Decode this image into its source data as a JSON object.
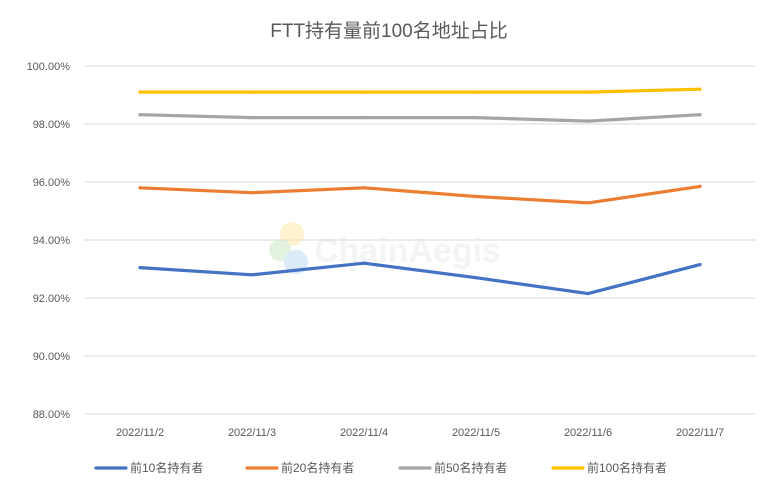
{
  "chart_data": {
    "type": "line",
    "title": "FTT持有量前100名地址占比",
    "xlabel": "",
    "ylabel": "",
    "categories": [
      "2022/11/2",
      "2022/11/3",
      "2022/11/4",
      "2022/11/5",
      "2022/11/6",
      "2022/11/7"
    ],
    "y_ticks": [
      "88.00%",
      "90.00%",
      "92.00%",
      "94.00%",
      "96.00%",
      "98.00%",
      "100.00%"
    ],
    "ylim": [
      88,
      100
    ],
    "y_unit": "%",
    "grid": true,
    "legend_position": "bottom",
    "series": [
      {
        "name": "前10名持有者",
        "color": "#4472c4",
        "values": [
          93.05,
          92.8,
          93.2,
          92.7,
          92.15,
          93.15
        ]
      },
      {
        "name": "前20名持有者",
        "color": "#ed7d31",
        "values": [
          95.8,
          95.63,
          95.8,
          95.5,
          95.28,
          95.85
        ]
      },
      {
        "name": "前50名持有者",
        "color": "#a5a5a5",
        "values": [
          98.32,
          98.22,
          98.22,
          98.22,
          98.1,
          98.32
        ]
      },
      {
        "name": "前100名持有者",
        "color": "#ffc000",
        "values": [
          99.1,
          99.1,
          99.1,
          99.1,
          99.1,
          99.2
        ]
      }
    ]
  },
  "watermark": {
    "text": "ChainAegis",
    "icon": "chainaegis-logo-icon"
  }
}
